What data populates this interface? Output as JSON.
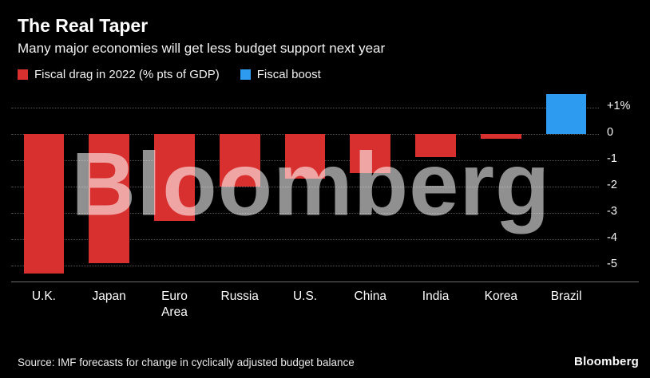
{
  "header": {
    "title": "The Real Taper",
    "subtitle": "Many major economies will get less budget support next year"
  },
  "legend": [
    {
      "label": "Fiscal drag in 2022 (% pts of GDP)",
      "color": "#d7302f"
    },
    {
      "label": "Fiscal boost",
      "color": "#2d9bf0"
    }
  ],
  "chart_data": {
    "type": "bar",
    "title": "The Real Taper",
    "subtitle": "Many major economies will get less budget support next year",
    "categories": [
      "U.K.",
      "Japan",
      "Euro Area",
      "Russia",
      "U.S.",
      "China",
      "India",
      "Korea",
      "Brazil"
    ],
    "values": [
      -5.3,
      -4.9,
      -3.3,
      -2.0,
      -1.7,
      -1.5,
      -0.9,
      -0.2,
      1.5
    ],
    "bar_colors": {
      "negative": "#d7302f",
      "positive": "#2d9bf0"
    },
    "xlabel": "",
    "ylabel": "",
    "ylim": [
      -5.6,
      1.6
    ],
    "yticks": [
      1,
      0,
      -1,
      -2,
      -3,
      -4,
      -5
    ],
    "ytick_labels": [
      "+1%",
      "0",
      "-1",
      "-2",
      "-3",
      "-4",
      "-5"
    ],
    "grid": "horizontal-dotted",
    "legend_position": "top-left",
    "watermark": "Bloomberg"
  },
  "colors": {
    "background": "#000000",
    "text": "#ffffff",
    "gridline": "#555555",
    "axis_line": "#6e6e6e",
    "watermark": "#909090"
  },
  "footer": {
    "source": "Source: IMF forecasts for change in cyclically adjusted budget balance",
    "logo": "Bloomberg"
  }
}
